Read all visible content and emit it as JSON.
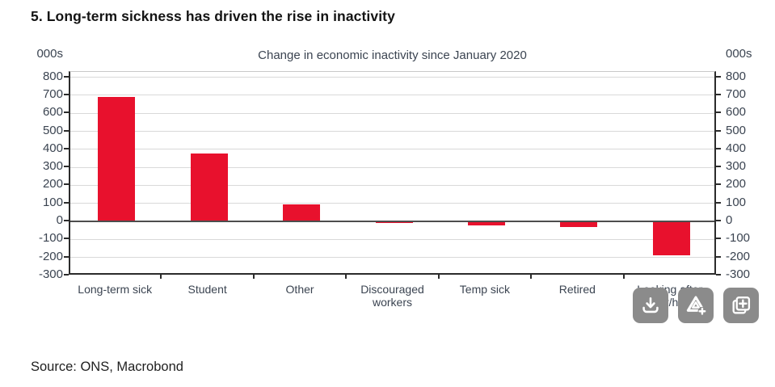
{
  "page": {
    "title": "5. Long-term sickness has driven the rise in inactivity",
    "source": "Source: ONS, Macrobond"
  },
  "chart_data": {
    "type": "bar",
    "title": "Change in economic inactivity since January 2020",
    "unit_left": "000s",
    "unit_right": "000s",
    "categories": [
      "Long-term sick",
      "Student",
      "Other",
      "Discouraged workers",
      "Temp sick",
      "Retired",
      "Looking after family/home"
    ],
    "values": [
      690,
      375,
      95,
      -5,
      -20,
      -30,
      -190
    ],
    "yticks": [
      800,
      700,
      600,
      500,
      400,
      300,
      200,
      100,
      0,
      -100,
      -200,
      -300
    ],
    "ylim": [
      -300,
      830
    ],
    "grid": true,
    "legend_position": "none",
    "bar_color": "#e8112d",
    "axis_text_color": "#3b4451",
    "zero_line_color": "#4d4d4d",
    "gridline_color": "#d9d9d9"
  },
  "toolbar": {
    "buttons": [
      {
        "name": "download-button",
        "icon": "download-icon"
      },
      {
        "name": "add-chart-button",
        "icon": "triangle-logo-plus-icon"
      },
      {
        "name": "duplicate-chart-button",
        "icon": "duplicate-plus-icon"
      }
    ]
  }
}
